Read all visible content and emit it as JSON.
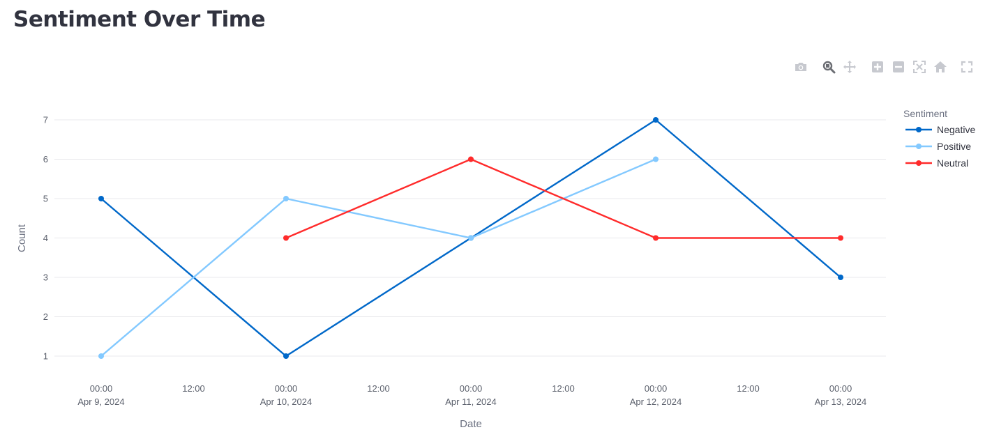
{
  "page": {
    "title": "Sentiment Over Time"
  },
  "modebar": {
    "icons": [
      "camera-icon",
      "zoom-icon",
      "pan-icon",
      "zoom-in-icon",
      "zoom-out-icon",
      "autoscale-icon",
      "home-icon",
      "fullscreen-icon"
    ],
    "active": "zoom-icon"
  },
  "chart_data": {
    "type": "line",
    "title": "",
    "xlabel": "Date",
    "ylabel": "Count",
    "legend_title": "Sentiment",
    "legend_position": "top-right",
    "grid": true,
    "x_range": [
      "2024-04-09T00:00",
      "2024-04-13T00:00"
    ],
    "ylim": [
      1,
      7
    ],
    "y_ticks": [
      1,
      2,
      3,
      4,
      5,
      6,
      7
    ],
    "x_ticks": [
      {
        "x": "2024-04-09T00:00",
        "time": "00:00",
        "date": "Apr 9, 2024"
      },
      {
        "x": "2024-04-09T12:00",
        "time": "12:00",
        "date": ""
      },
      {
        "x": "2024-04-10T00:00",
        "time": "00:00",
        "date": "Apr 10, 2024"
      },
      {
        "x": "2024-04-10T12:00",
        "time": "12:00",
        "date": ""
      },
      {
        "x": "2024-04-11T00:00",
        "time": "00:00",
        "date": "Apr 11, 2024"
      },
      {
        "x": "2024-04-11T12:00",
        "time": "12:00",
        "date": ""
      },
      {
        "x": "2024-04-12T00:00",
        "time": "00:00",
        "date": "Apr 12, 2024"
      },
      {
        "x": "2024-04-12T12:00",
        "time": "12:00",
        "date": ""
      },
      {
        "x": "2024-04-13T00:00",
        "time": "00:00",
        "date": "Apr 13, 2024"
      }
    ],
    "series": [
      {
        "name": "Negative",
        "color": "#0068c9",
        "points": [
          {
            "x": "2024-04-09T00:00",
            "y": 5
          },
          {
            "x": "2024-04-10T00:00",
            "y": 1
          },
          {
            "x": "2024-04-11T00:00",
            "y": 4
          },
          {
            "x": "2024-04-12T00:00",
            "y": 7
          },
          {
            "x": "2024-04-13T00:00",
            "y": 3
          }
        ]
      },
      {
        "name": "Positive",
        "color": "#83c9ff",
        "points": [
          {
            "x": "2024-04-09T00:00",
            "y": 1
          },
          {
            "x": "2024-04-10T00:00",
            "y": 5
          },
          {
            "x": "2024-04-11T00:00",
            "y": 4
          },
          {
            "x": "2024-04-12T00:00",
            "y": 6
          }
        ]
      },
      {
        "name": "Neutral",
        "color": "#ff2b2b",
        "points": [
          {
            "x": "2024-04-10T00:00",
            "y": 4
          },
          {
            "x": "2024-04-11T00:00",
            "y": 6
          },
          {
            "x": "2024-04-12T00:00",
            "y": 4
          },
          {
            "x": "2024-04-13T00:00",
            "y": 4
          }
        ]
      }
    ]
  }
}
